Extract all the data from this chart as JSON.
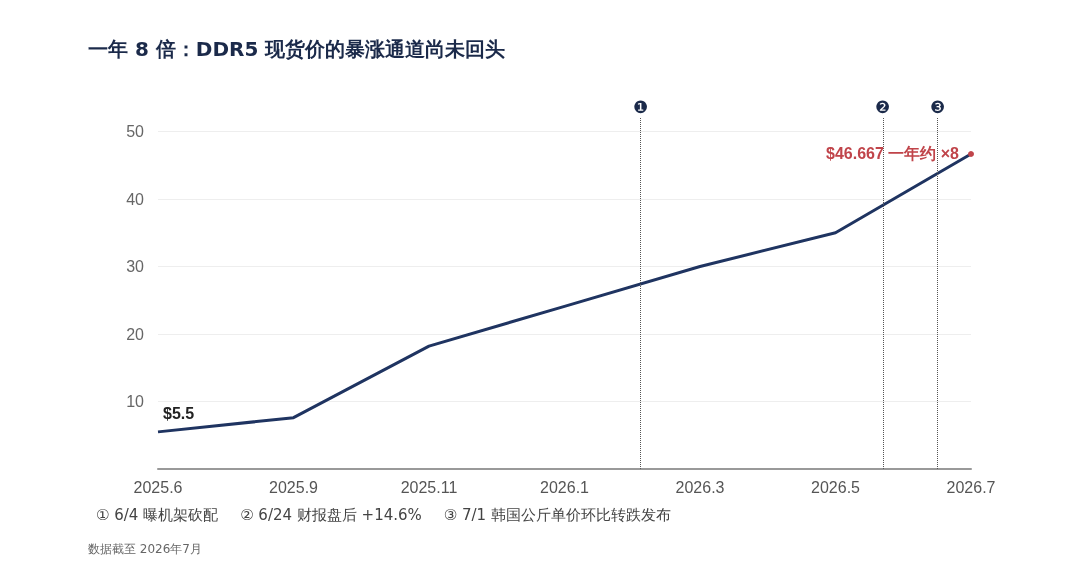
{
  "chart_data": {
    "type": "line",
    "title": "一年 8 倍：DDR5 现货价的暴涨通道尚未回头",
    "categories": [
      "2025.6",
      "2025.9",
      "2025.11",
      "2026.1",
      "2026.3",
      "2026.5",
      "2026.7"
    ],
    "series": [
      {
        "color": "#1f3461",
        "values": [
          5.5,
          7.6,
          18.2,
          24.1,
          30,
          35,
          46.667
        ]
      }
    ],
    "ylim": [
      0,
      52
    ],
    "yticks": [
      10,
      20,
      30,
      40,
      50
    ],
    "grid": "y",
    "marker": "none",
    "line_style": "solid",
    "annotations": [
      {
        "text": "$5.5",
        "x": "2025.6",
        "y": 5.5
      },
      {
        "text": "$46.667 一年约 ×8",
        "x": "2026.7",
        "y": 46.667
      },
      "❶",
      "❷",
      "❸",
      "① 6/4 曝机架砍配",
      "② 6/24 财报盘后 +14.6%",
      "③ 7/1 韩国公斤单价环比转跌发布",
      "数据截至 2026年7月"
    ]
  }
}
